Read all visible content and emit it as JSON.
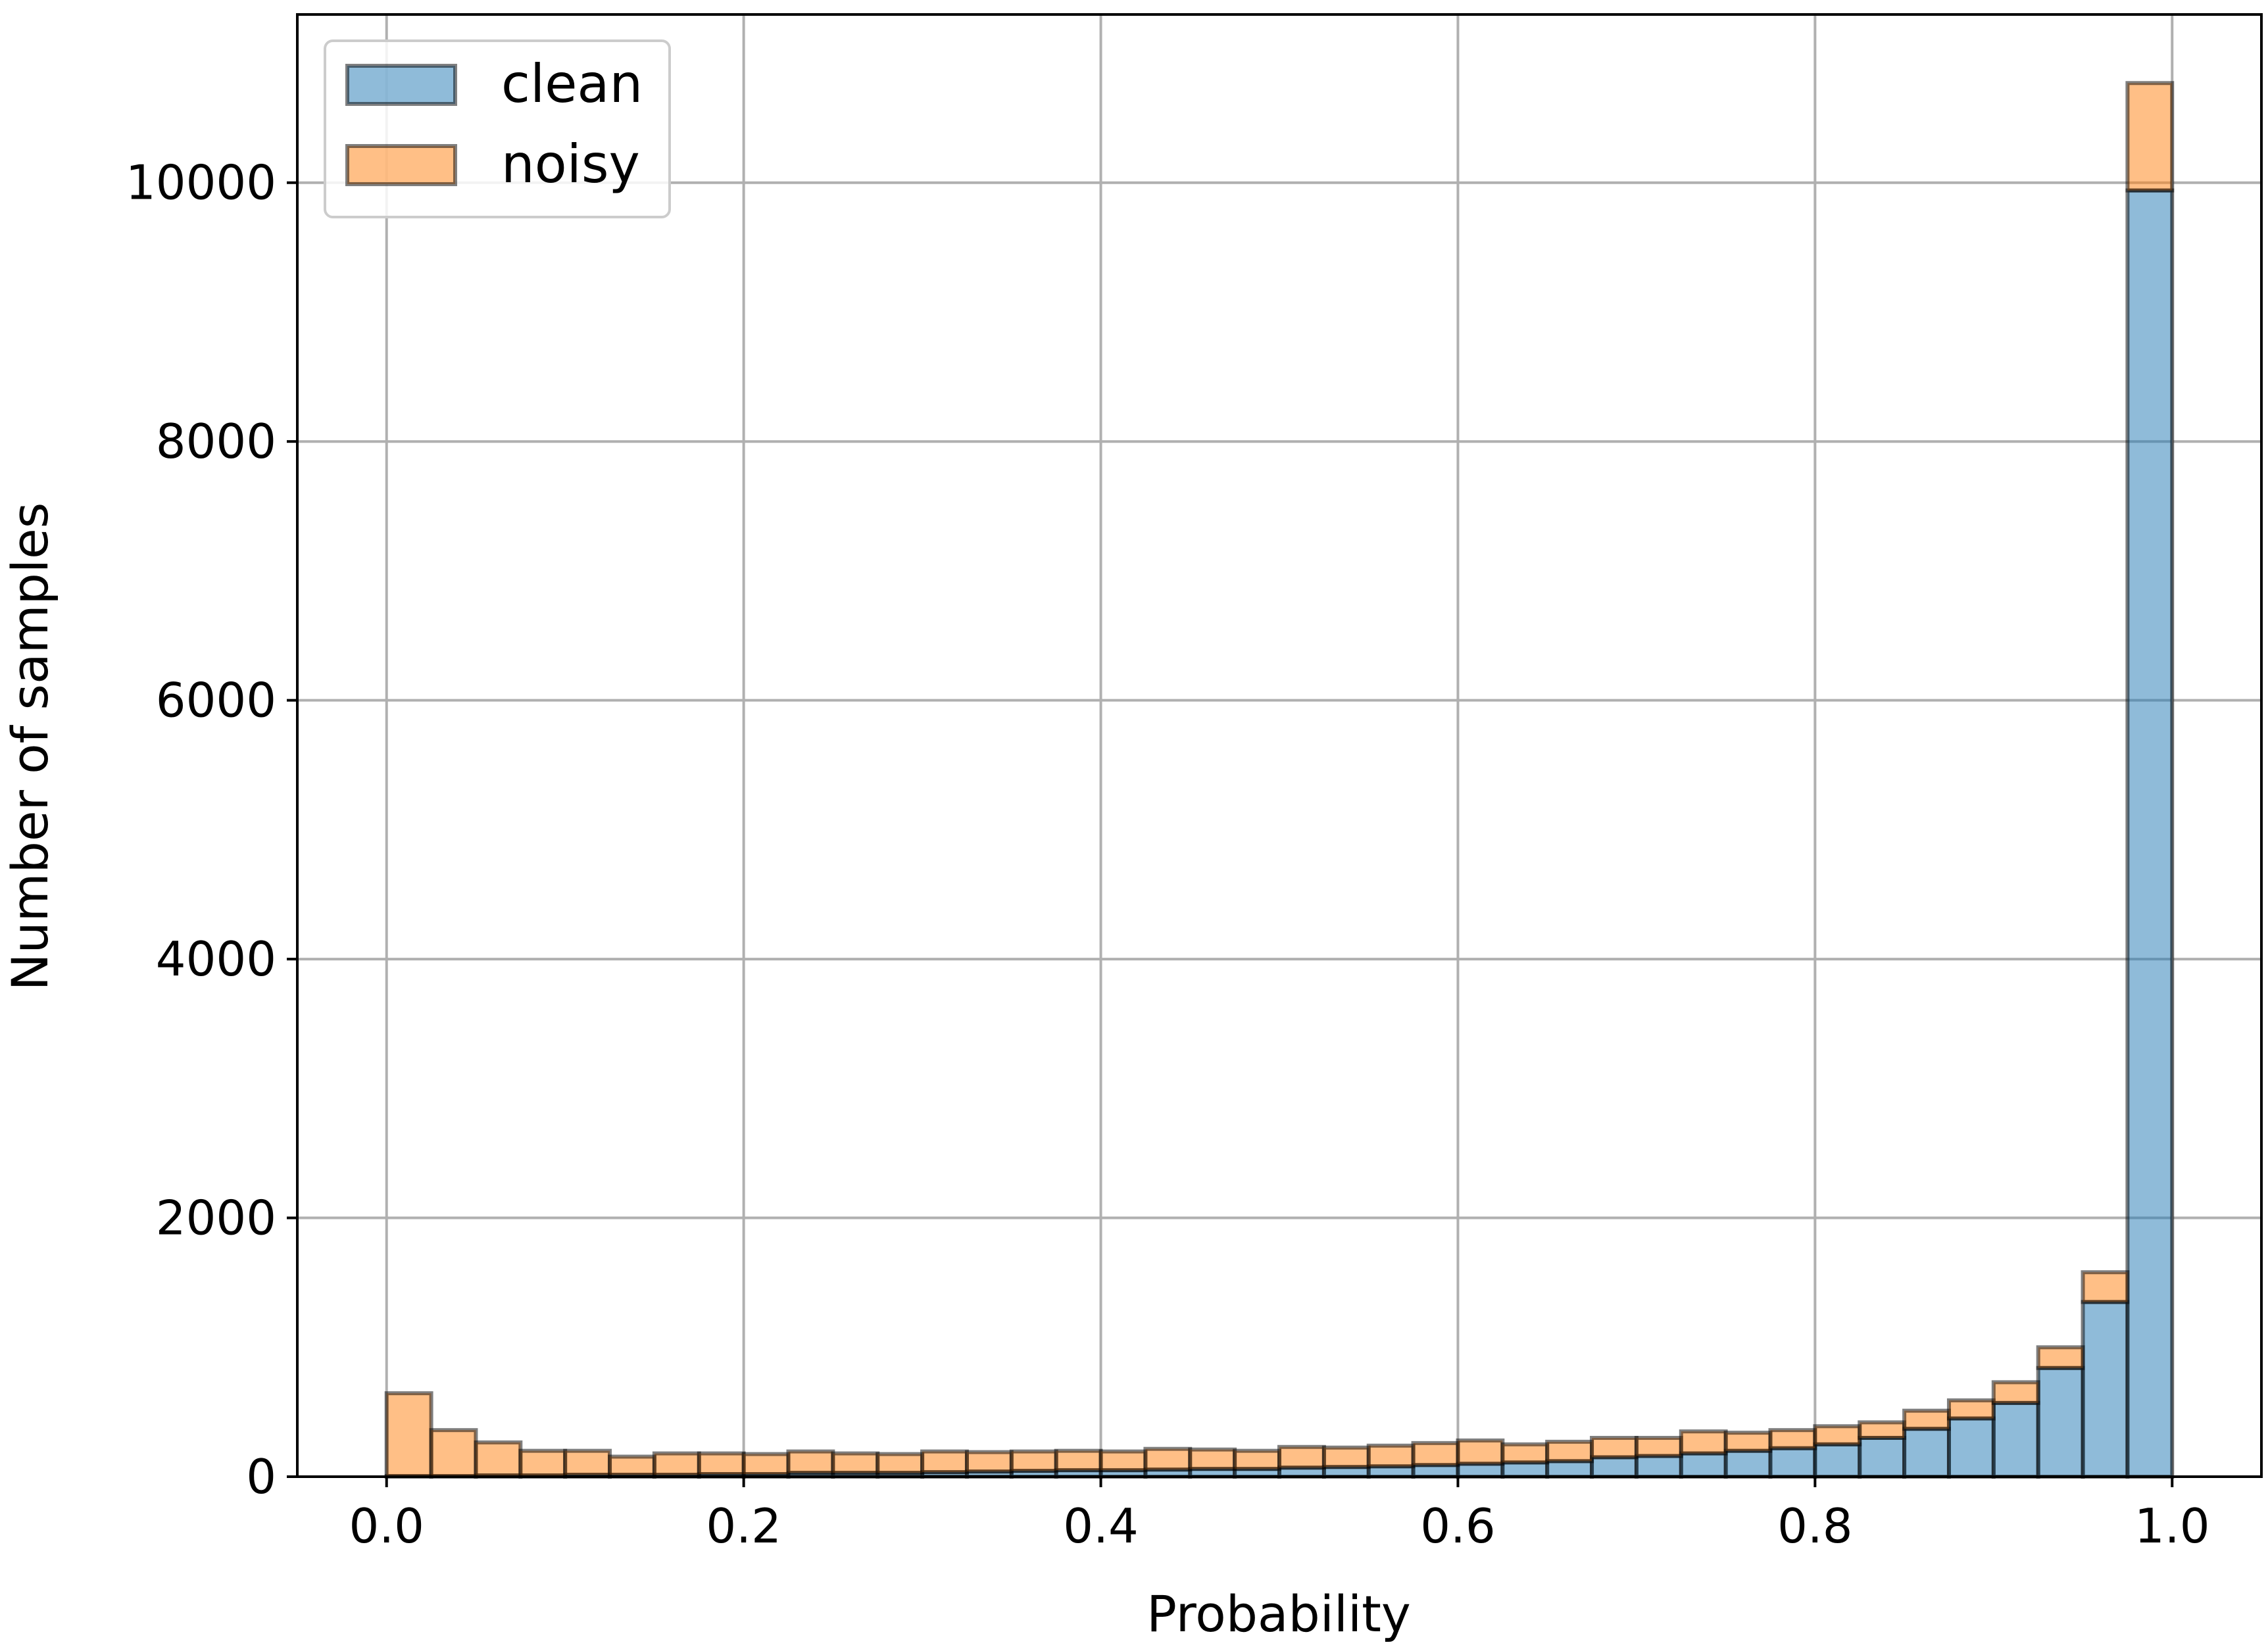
{
  "chart_data": {
    "type": "bar",
    "stacked": true,
    "bins": 40,
    "bin_range": [
      0.0,
      1.0
    ],
    "x": [
      0.0125,
      0.0375,
      0.0625,
      0.0875,
      0.1125,
      0.1375,
      0.1625,
      0.1875,
      0.2125,
      0.2375,
      0.2625,
      0.2875,
      0.3125,
      0.3375,
      0.3625,
      0.3875,
      0.4125,
      0.4375,
      0.4625,
      0.4875,
      0.5125,
      0.5375,
      0.5625,
      0.5875,
      0.6125,
      0.6375,
      0.6625,
      0.6875,
      0.7125,
      0.7375,
      0.7625,
      0.7875,
      0.8125,
      0.8375,
      0.8625,
      0.8875,
      0.9125,
      0.9375,
      0.9625,
      0.9875
    ],
    "series": [
      {
        "name": "clean",
        "color": "#1f77b4",
        "values": [
          5,
          5,
          10,
          10,
          15,
          15,
          15,
          20,
          20,
          30,
          30,
          30,
          35,
          40,
          45,
          50,
          50,
          55,
          60,
          60,
          70,
          75,
          80,
          90,
          100,
          110,
          120,
          150,
          160,
          180,
          200,
          220,
          250,
          300,
          370,
          450,
          570,
          840,
          1350,
          9940
        ]
      },
      {
        "name": "noisy",
        "color": "#ff7f0e",
        "values": [
          640,
          355,
          255,
          190,
          185,
          140,
          165,
          160,
          155,
          165,
          150,
          145,
          160,
          150,
          150,
          150,
          145,
          160,
          150,
          140,
          160,
          150,
          160,
          170,
          180,
          140,
          150,
          150,
          140,
          170,
          140,
          140,
          140,
          120,
          140,
          140,
          160,
          160,
          230,
          830
        ]
      }
    ],
    "xlabel": "Probability",
    "ylabel": "Number of samples",
    "xticks": [
      "0.0",
      "0.2",
      "0.4",
      "0.6",
      "0.8",
      "1.0"
    ],
    "xtick_values": [
      0.0,
      0.2,
      0.4,
      0.6,
      0.8,
      1.0
    ],
    "yticks": [
      "0",
      "2000",
      "4000",
      "6000",
      "8000",
      "10000"
    ],
    "ytick_values": [
      0,
      2000,
      4000,
      6000,
      8000,
      10000
    ],
    "xlim": [
      -0.05,
      1.05
    ],
    "ylim": [
      0,
      11300
    ],
    "grid": true,
    "legend": "top-left"
  }
}
